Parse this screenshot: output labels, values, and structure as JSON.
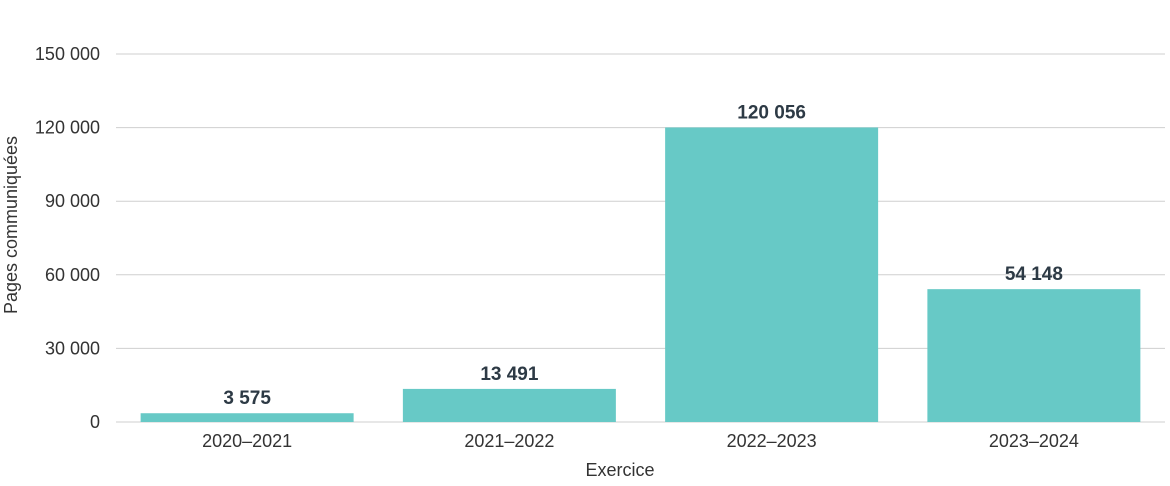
{
  "chart_data": {
    "type": "bar",
    "categories": [
      "2020–2021",
      "2021–2022",
      "2022–2023",
      "2023–2024"
    ],
    "values": [
      3575,
      13491,
      120056,
      54148
    ],
    "data_labels": [
      "3 575",
      "13 491",
      "120 056",
      "54 148"
    ],
    "yticks": [
      0,
      30000,
      60000,
      90000,
      120000,
      150000
    ],
    "ytick_labels": [
      "0",
      "30 000",
      "60 000",
      "90 000",
      "120 000",
      "150 000"
    ],
    "ylim": [
      0,
      150000
    ],
    "xlabel": "Exercice",
    "ylabel": "Pages communiquées",
    "grid": "horizontal",
    "legend": "none",
    "bar_color": "#67c9c6"
  }
}
